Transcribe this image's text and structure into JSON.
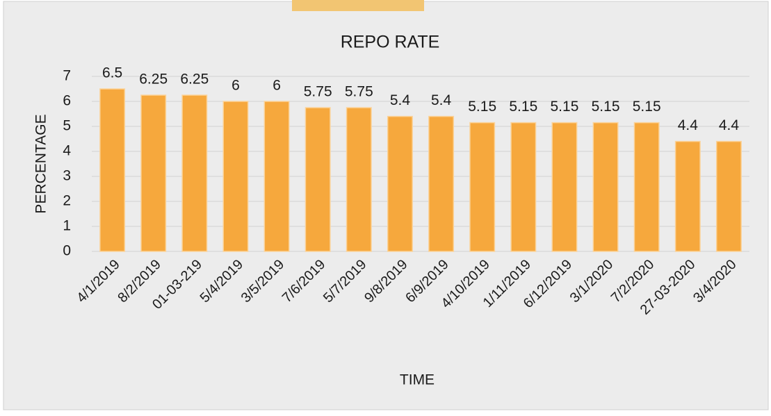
{
  "chart_data": {
    "type": "bar",
    "title": "REPO RATE",
    "x_label": "TIME",
    "y_label": "PERCENTAGE",
    "categories": [
      "4/1/2019",
      "8/2/2019",
      "01-03-219",
      "5/4/2019",
      "3/5/2019",
      "7/6/2019",
      "5/7/2019",
      "9/8/2019",
      "6/9/2019",
      "4/10/2019",
      "1/11/2019",
      "6/12/2019",
      "3/1/2020",
      "7/2/2020",
      "27-03-2020",
      "3/4/2020"
    ],
    "values": [
      6.5,
      6.25,
      6.25,
      6,
      6,
      5.75,
      5.75,
      5.4,
      5.4,
      5.15,
      5.15,
      5.15,
      5.15,
      5.15,
      4.4,
      4.4
    ],
    "color": "#f6a83d",
    "ylim": [
      0,
      7
    ],
    "yticks": [
      0,
      1,
      2,
      3,
      4,
      5,
      6,
      7
    ],
    "grid": true
  }
}
